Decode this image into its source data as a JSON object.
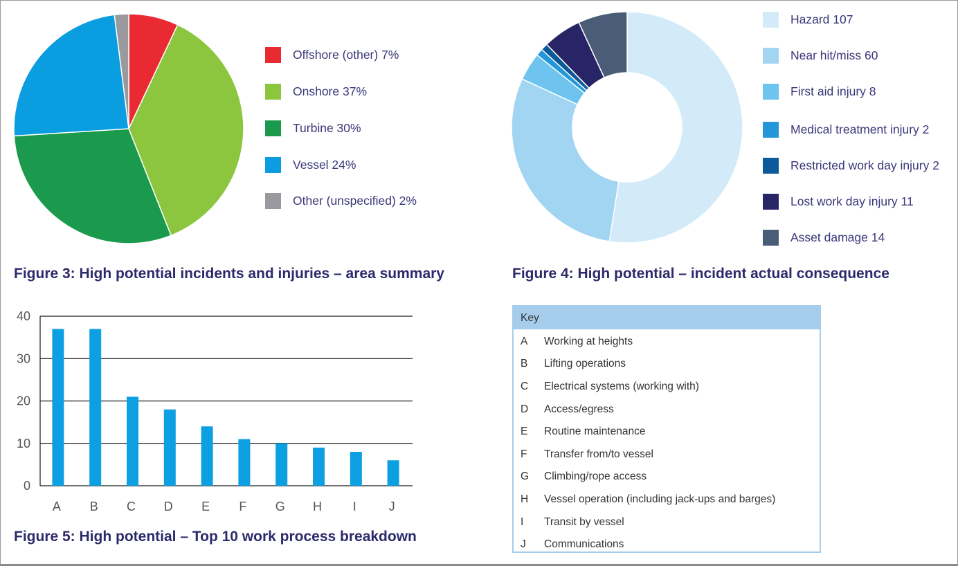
{
  "figure3": {
    "caption": "Figure 3: High potential incidents and injuries – area summary",
    "legend": [
      {
        "label": "Offshore (other) 7%",
        "color": "#ea2a33"
      },
      {
        "label": "Onshore 37%",
        "color": "#8cc63f"
      },
      {
        "label": "Turbine 30%",
        "color": "#1b9a4d"
      },
      {
        "label": "Vessel 24%",
        "color": "#0a9de0"
      },
      {
        "label": "Other (unspecified) 2%",
        "color": "#9a9a9e"
      }
    ]
  },
  "figure4": {
    "caption": "Figure 4: High potential – incident actual consequence",
    "legend": [
      {
        "label": "Hazard 107",
        "color": "#d3ebf8"
      },
      {
        "label": "Near hit/miss 60",
        "color": "#a2d5f1"
      },
      {
        "label": "First aid injury 8",
        "color": "#6ec4ee"
      },
      {
        "label": "Medical treatment injury 2",
        "color": "#2397d8"
      },
      {
        "label": "Restricted work day injury 2",
        "color": "#0c5a99"
      },
      {
        "label": "Lost work day injury 11",
        "color": "#272565"
      },
      {
        "label": "Asset damage 14",
        "color": "#4b5c78"
      }
    ]
  },
  "figure5": {
    "caption": "Figure 5: High potential – Top 10 work process breakdown",
    "bar_color": "#0c9fe2"
  },
  "key": {
    "title": "Key",
    "items": [
      {
        "letter": "A",
        "text": "Working at heights"
      },
      {
        "letter": "B",
        "text": "Lifting operations"
      },
      {
        "letter": "C",
        "text": "Electrical systems (working with)"
      },
      {
        "letter": "D",
        "text": "Access/egress"
      },
      {
        "letter": "E",
        "text": "Routine maintenance"
      },
      {
        "letter": "F",
        "text": "Transfer from/to vessel"
      },
      {
        "letter": "G",
        "text": "Climbing/rope access"
      },
      {
        "letter": "H",
        "text": "Vessel operation (including jack-ups and barges)"
      },
      {
        "letter": "I",
        "text": "Transit by vessel"
      },
      {
        "letter": "J",
        "text": "Communications"
      }
    ]
  },
  "chart_data": [
    {
      "type": "pie",
      "title": "Figure 3: High potential incidents and injuries – area summary",
      "categories": [
        "Offshore (other)",
        "Onshore",
        "Turbine",
        "Vessel",
        "Other (unspecified)"
      ],
      "values": [
        7,
        37,
        30,
        24,
        2
      ],
      "unit": "%",
      "colors": [
        "#ea2a33",
        "#8cc63f",
        "#1b9a4d",
        "#0a9de0",
        "#9a9a9e"
      ],
      "legend_position": "right"
    },
    {
      "type": "pie",
      "subtype": "donut",
      "title": "Figure 4: High potential – incident actual consequence",
      "categories": [
        "Hazard",
        "Near hit/miss",
        "First aid injury",
        "Medical treatment injury",
        "Restricted work day injury",
        "Lost work day injury",
        "Asset damage"
      ],
      "values": [
        107,
        60,
        8,
        2,
        2,
        11,
        14
      ],
      "colors": [
        "#d3ebf8",
        "#a2d5f1",
        "#6ec4ee",
        "#2397d8",
        "#0c5a99",
        "#272565",
        "#4b5c78"
      ],
      "legend_position": "right"
    },
    {
      "type": "bar",
      "title": "Figure 5: High potential – Top 10 work process breakdown",
      "categories": [
        "A",
        "B",
        "C",
        "D",
        "E",
        "F",
        "G",
        "H",
        "I",
        "J"
      ],
      "values": [
        37,
        37,
        21,
        18,
        14,
        11,
        10,
        9,
        8,
        6
      ],
      "ylim": [
        0,
        40
      ],
      "yticks": [
        0,
        10,
        20,
        30,
        40
      ],
      "grid": true,
      "xlabel": "",
      "ylabel": ""
    }
  ]
}
